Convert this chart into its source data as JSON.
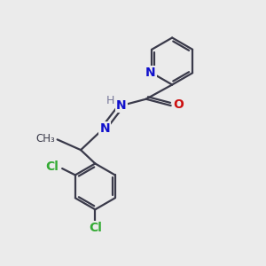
{
  "bg_color": "#ebebeb",
  "bond_color": "#3a3a4a",
  "N_color": "#1010cc",
  "O_color": "#cc1010",
  "Cl_color": "#33aa33",
  "H_color": "#777799",
  "bond_width": 1.6,
  "figsize": [
    3.0,
    3.0
  ],
  "dpi": 100,
  "xlim": [
    0,
    10
  ],
  "ylim": [
    0,
    10
  ]
}
